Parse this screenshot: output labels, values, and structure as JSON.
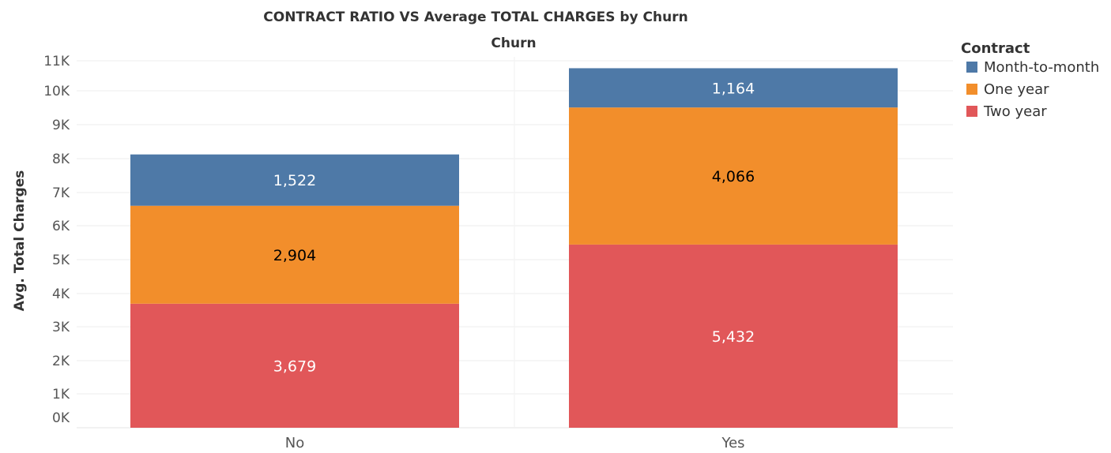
{
  "chart_data": {
    "type": "bar",
    "stacked": true,
    "title": "CONTRACT RATIO VS Average TOTAL CHARGES by Churn",
    "column_header": "Churn",
    "ylabel": "Avg. Total Charges",
    "xlabel": "",
    "ylim": [
      0,
      11000
    ],
    "y_ticks": [
      "0K",
      "1K",
      "2K",
      "3K",
      "4K",
      "5K",
      "6K",
      "7K",
      "8K",
      "9K",
      "10K",
      "11K"
    ],
    "categories": [
      "No",
      "Yes"
    ],
    "series": [
      {
        "name": "Two year",
        "color": "#e15759",
        "values": [
          3679,
          5432
        ],
        "labels": [
          "3,679",
          "5,432"
        ],
        "label_color": "#ffffff"
      },
      {
        "name": "One year",
        "color": "#f28e2b",
        "values": [
          2904,
          4066
        ],
        "labels": [
          "2,904",
          "4,066"
        ],
        "label_color": "#000000"
      },
      {
        "name": "Month-to-month",
        "color": "#4e79a7",
        "values": [
          1522,
          1164
        ],
        "labels": [
          "1,522",
          "1,164"
        ],
        "label_color": "#ffffff"
      }
    ],
    "legend": {
      "title": "Contract",
      "position": "top-right",
      "order": [
        "Month-to-month",
        "One year",
        "Two year"
      ]
    },
    "grid": true
  }
}
